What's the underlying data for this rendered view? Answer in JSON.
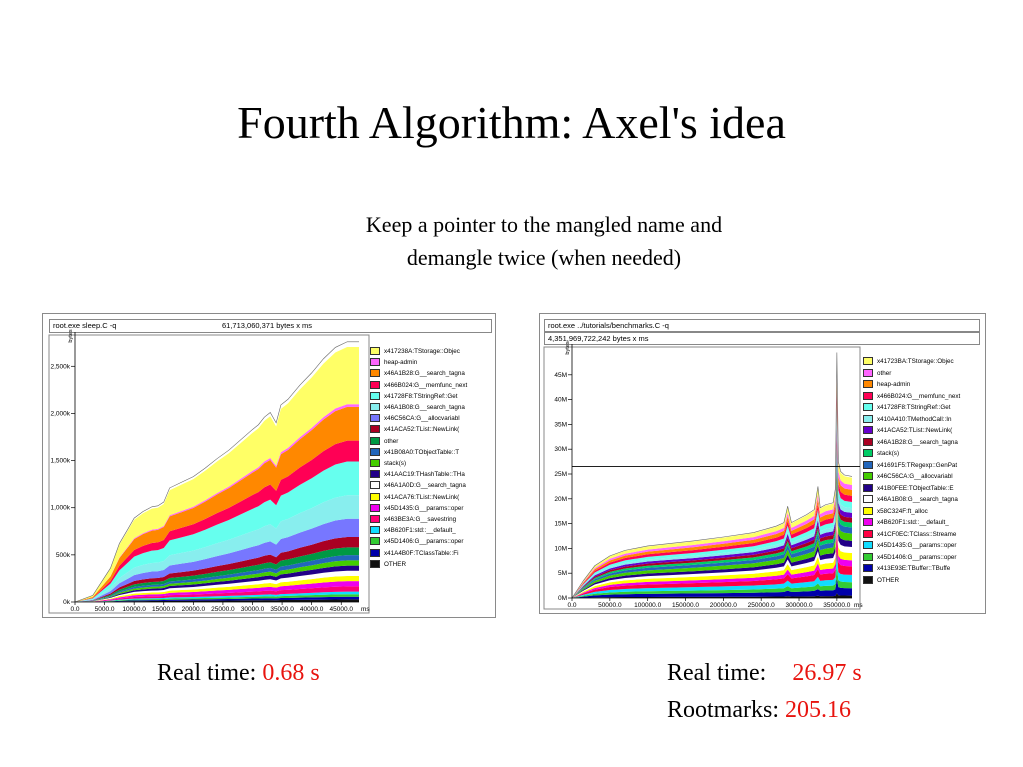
{
  "slide": {
    "title": "Fourth Algorithm: Axel's idea",
    "subtitle_line1": "Keep a pointer to the mangled name and",
    "subtitle_line2": "demangle twice (when needed)"
  },
  "captions": {
    "left_label": "Real time:",
    "left_value": "0.68 s",
    "right_label": "Real time:",
    "right_value": "26.97 s",
    "right_label2": "Rootmarks:",
    "right_value2": "205.16",
    "value_color": "#e8140f"
  },
  "chart_data": [
    {
      "type": "area",
      "header_cmd": "root.exe sleep.C -q",
      "header_total": "61,713,060,371 bytes x ms",
      "yunit": "bytes",
      "xunit": "ms",
      "xticks": [
        "0.0",
        "5000.0",
        "10000.0",
        "15000.0",
        "20000.0",
        "25000.0",
        "30000.0",
        "35000.0",
        "40000.0",
        "45000.0"
      ],
      "xtick_values": [
        0,
        5000,
        10000,
        15000,
        20000,
        25000,
        30000,
        35000,
        40000,
        45000
      ],
      "yticks": [
        "0k",
        "500k",
        "1,000k",
        "1,500k",
        "2,000k",
        "2,500k"
      ],
      "ytick_values": [
        0,
        500,
        1000,
        1500,
        2000,
        2500
      ],
      "xlim": [
        0,
        48000
      ],
      "ylim": [
        0,
        2800
      ],
      "x": [
        0,
        3000,
        6000,
        7500,
        9000,
        10000,
        11500,
        13000,
        14000,
        15000,
        16000,
        18000,
        20000,
        22000,
        24000,
        26000,
        28000,
        30000,
        31000,
        32000,
        33000,
        34000,
        34800,
        36000,
        38000,
        40000,
        42000,
        44000,
        46000,
        48000
      ],
      "total": [
        0,
        70,
        360,
        620,
        780,
        890,
        960,
        1010,
        1020,
        1060,
        1210,
        1270,
        1330,
        1420,
        1520,
        1610,
        1720,
        1830,
        1880,
        1960,
        2010,
        1900,
        2090,
        2150,
        2300,
        2430,
        2580,
        2700,
        2760,
        2760
      ],
      "series": [
        {
          "name": "x417238A:TStorage::Objec",
          "color": "#ffff66",
          "share": 0.22
        },
        {
          "name": "heap-admin",
          "color": "#ff66ff",
          "share": 0.01
        },
        {
          "name": "x46A1B28:G__search_tagna",
          "color": "#ff8800",
          "share": 0.13
        },
        {
          "name": "x466B024:G__memfunc_next",
          "color": "#ff0055",
          "share": 0.08
        },
        {
          "name": "x41728F8:TStringRef::Get",
          "color": "#66ffee",
          "share": 0.13
        },
        {
          "name": "x46A1B08:G__search_tagna",
          "color": "#88eeee",
          "share": 0.09
        },
        {
          "name": "x46C56CA:G__allocvariabl",
          "color": "#7777ff",
          "share": 0.07
        },
        {
          "name": "x41ACA52:TList::NewLink(",
          "color": "#aa0022",
          "share": 0.04
        },
        {
          "name": "other",
          "color": "#009944",
          "share": 0.03
        },
        {
          "name": "x41B08A0:TObjectTable::T",
          "color": "#2266bb",
          "share": 0.02
        },
        {
          "name": "stack(s)",
          "color": "#44cc00",
          "share": 0.02
        },
        {
          "name": "x41AAC19:THashTable::THa",
          "color": "#220088",
          "share": 0.02
        },
        {
          "name": "x46A1A0D:G__search_tagna",
          "color": "#ffffff",
          "share": 0.02
        },
        {
          "name": "x41ACA76:TList::NewLink(",
          "color": "#ffff00",
          "share": 0.02
        },
        {
          "name": "x45D1435:G__params::oper",
          "color": "#ee00ee",
          "share": 0.02
        },
        {
          "name": "x463BE3A:G__savestring",
          "color": "#ff0077",
          "share": 0.02
        },
        {
          "name": "x4B620F1:std::__default_",
          "color": "#11ddff",
          "share": 0.01
        },
        {
          "name": "x45D1406:G__params::oper",
          "color": "#33cc33",
          "share": 0.01
        },
        {
          "name": "x41A4B0F:TClassTable::Fi",
          "color": "#0000aa",
          "share": 0.01
        },
        {
          "name": "OTHER",
          "color": "#111111",
          "share": 0.01
        }
      ]
    },
    {
      "type": "area",
      "header_cmd": "root.exe ../tutorials/benchmarks.C -q",
      "header_total": "4,351,969,722,242 bytes x ms",
      "yunit": "bytes",
      "xunit": "ms",
      "xticks": [
        "0.0",
        "50000.0",
        "100000.0",
        "150000.0",
        "200000.0",
        "250000.0",
        "300000.0",
        "350000.0"
      ],
      "xtick_values": [
        0,
        50000,
        100000,
        150000,
        200000,
        250000,
        300000,
        350000
      ],
      "yticks": [
        "0M",
        "5M",
        "10M",
        "15M",
        "20M",
        "25M",
        "30M",
        "35M",
        "40M",
        "45M"
      ],
      "ytick_values": [
        0,
        5,
        10,
        15,
        20,
        25,
        30,
        35,
        40,
        45
      ],
      "xlim": [
        0,
        370000
      ],
      "ylim": [
        0,
        50
      ],
      "marker_y": 26.5,
      "x": [
        0,
        15000,
        30000,
        50000,
        70000,
        100000,
        130000,
        160000,
        200000,
        240000,
        270000,
        280000,
        285000,
        290000,
        310000,
        320000,
        325000,
        328000,
        335000,
        345000,
        348000,
        350000,
        352000,
        355000,
        360000,
        370000
      ],
      "total": [
        0,
        3.5,
        6.5,
        8.5,
        9.6,
        10.5,
        11,
        11.5,
        12.3,
        13.2,
        14.5,
        15.2,
        18.5,
        15.2,
        16.8,
        17.8,
        22.5,
        18.2,
        18.8,
        19.2,
        22,
        49.5,
        27.5,
        25.5,
        24.8,
        24.5
      ],
      "series": [
        {
          "name": "x41723BA:TStorage::Objec",
          "color": "#ffff66",
          "share": 0.06
        },
        {
          "name": "other",
          "color": "#ff66ff",
          "share": 0.04
        },
        {
          "name": "heap-admin",
          "color": "#ff8800",
          "share": 0.05
        },
        {
          "name": "x466B024:G__memfunc_next",
          "color": "#ff0055",
          "share": 0.05
        },
        {
          "name": "x41728F8:TStringRef::Get",
          "color": "#66ffee",
          "share": 0.05
        },
        {
          "name": "x410A410:TMethodCall::In",
          "color": "#88eeee",
          "share": 0.04
        },
        {
          "name": "x41ACA52:TList::NewLink(",
          "color": "#6600cc",
          "share": 0.04
        },
        {
          "name": "x46A1B28:G__search_tagna",
          "color": "#aa0022",
          "share": 0.04
        },
        {
          "name": "stack(s)",
          "color": "#00cc66",
          "share": 0.04
        },
        {
          "name": "x41691F5:TRegexp::GenPat",
          "color": "#2266bb",
          "share": 0.05
        },
        {
          "name": "x46C56CA:G__allocvariabl",
          "color": "#44cc00",
          "share": 0.06
        },
        {
          "name": "x41B0FEE:TObjectTable::E",
          "color": "#220088",
          "share": 0.05
        },
        {
          "name": "x46A1B08:G__search_tagna",
          "color": "#ffffff",
          "share": 0.05
        },
        {
          "name": "x58C324F:ft_alloc",
          "color": "#ffff00",
          "share": 0.06
        },
        {
          "name": "x4B620F1:std::__default_",
          "color": "#ee00ee",
          "share": 0.05
        },
        {
          "name": "x41CF0EC:TClass::Streame",
          "color": "#ff0044",
          "share": 0.07
        },
        {
          "name": "x45D1435:G__params::oper",
          "color": "#11ddff",
          "share": 0.06
        },
        {
          "name": "x45D1406:G__params::oper",
          "color": "#33cc33",
          "share": 0.05
        },
        {
          "name": "x413E93E:TBuffer::TBuffe",
          "color": "#0000aa",
          "share": 0.06
        },
        {
          "name": "OTHER",
          "color": "#111111",
          "share": 0.02
        }
      ]
    }
  ]
}
